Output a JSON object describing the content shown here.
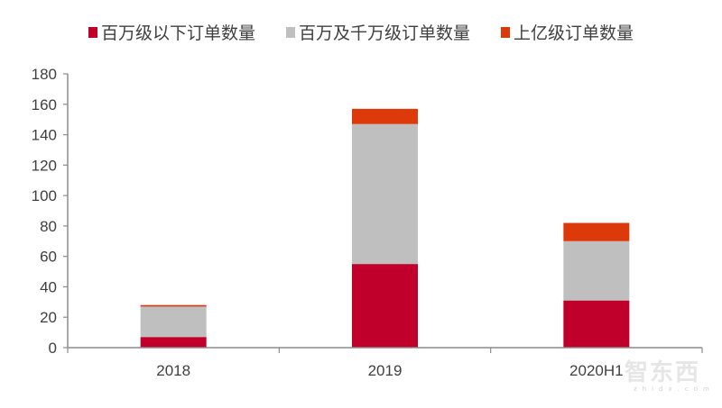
{
  "chart_data": {
    "type": "bar",
    "stacked": true,
    "title": "",
    "xlabel": "",
    "ylabel": "",
    "categories": [
      "2018",
      "2019",
      "2020H1"
    ],
    "series": [
      {
        "name": "百万级以下订单数量",
        "color": "#c0002a",
        "values": [
          7,
          55,
          31
        ]
      },
      {
        "name": "百万及千万级订单数量",
        "color": "#bfbfbf",
        "values": [
          20,
          92,
          39
        ]
      },
      {
        "name": "上亿级订单数量",
        "color": "#dd3a0b",
        "values": [
          1,
          10,
          12
        ]
      }
    ],
    "ylim": [
      0,
      180
    ],
    "yticks": [
      0,
      20,
      40,
      60,
      80,
      100,
      120,
      140,
      160,
      180
    ],
    "grid": false,
    "legend_position": "top"
  },
  "legend": {
    "items": [
      {
        "label": "百万级以下订单数量",
        "color": "#c0002a"
      },
      {
        "label": "百万及千万级订单数量",
        "color": "#bfbfbf"
      },
      {
        "label": "上亿级订单数量",
        "color": "#dd3a0b"
      }
    ]
  },
  "watermark": {
    "main": "智东西",
    "sub": "zhidx.com"
  }
}
